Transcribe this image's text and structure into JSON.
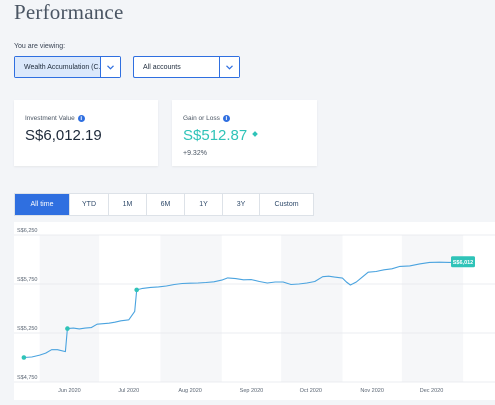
{
  "page": {
    "title": "Performance"
  },
  "viewing": {
    "label": "You are viewing:",
    "portfolio": "Wealth Accumulation (C...",
    "accounts": "All accounts"
  },
  "cards": {
    "investment": {
      "label": "Investment Value",
      "value": "S$6,012.19"
    },
    "gain": {
      "label": "Gain or Loss",
      "value": "S$512.87",
      "pct": "+9.32%"
    }
  },
  "tabs": [
    {
      "label": "All time",
      "active": true
    },
    {
      "label": "YTD"
    },
    {
      "label": "1M"
    },
    {
      "label": "6M"
    },
    {
      "label": "1Y"
    },
    {
      "label": "3Y"
    },
    {
      "label": "Custom"
    }
  ],
  "colors": {
    "accent": "#2f6fe0",
    "line": "#4aa3df",
    "marker": "#2fc3b8"
  },
  "chart_data": {
    "type": "line",
    "y_ticks": [
      "S$6,250",
      "S$5,750",
      "S$5,250",
      "S$4,750"
    ],
    "x_ticks": [
      "Jun 2020",
      "Jul 2020",
      "Aug 2020",
      "Sep 2020",
      "Oct 2020",
      "Nov 2020",
      "Dec 2020"
    ],
    "ylim": [
      4750,
      6250
    ],
    "end_label": "S$6,012",
    "markers": [
      {
        "date": "2020-05-24",
        "value": 5000
      },
      {
        "date": "2020-06-15",
        "value": 5295
      },
      {
        "date": "2020-07-20",
        "value": 5690
      }
    ],
    "series": [
      {
        "values": [
          [
            "2020-05-24",
            5000
          ],
          [
            "2020-05-28",
            5005
          ],
          [
            "2020-06-01",
            5025
          ],
          [
            "2020-06-04",
            5045
          ],
          [
            "2020-06-07",
            5080
          ],
          [
            "2020-06-10",
            5080
          ],
          [
            "2020-06-14",
            5060
          ],
          [
            "2020-06-15",
            5295
          ],
          [
            "2020-06-18",
            5300
          ],
          [
            "2020-06-21",
            5292
          ],
          [
            "2020-06-24",
            5300
          ],
          [
            "2020-06-27",
            5305
          ],
          [
            "2020-06-30",
            5340
          ],
          [
            "2020-07-03",
            5345
          ],
          [
            "2020-07-06",
            5350
          ],
          [
            "2020-07-09",
            5360
          ],
          [
            "2020-07-12",
            5375
          ],
          [
            "2020-07-16",
            5385
          ],
          [
            "2020-07-19",
            5470
          ],
          [
            "2020-07-20",
            5690
          ],
          [
            "2020-07-23",
            5705
          ],
          [
            "2020-07-27",
            5715
          ],
          [
            "2020-07-31",
            5720
          ],
          [
            "2020-08-04",
            5730
          ],
          [
            "2020-08-08",
            5745
          ],
          [
            "2020-08-12",
            5755
          ],
          [
            "2020-08-16",
            5758
          ],
          [
            "2020-08-20",
            5760
          ],
          [
            "2020-08-24",
            5765
          ],
          [
            "2020-08-28",
            5772
          ],
          [
            "2020-09-01",
            5790
          ],
          [
            "2020-09-04",
            5812
          ],
          [
            "2020-09-08",
            5805
          ],
          [
            "2020-09-12",
            5793
          ],
          [
            "2020-09-16",
            5795
          ],
          [
            "2020-09-20",
            5775
          ],
          [
            "2020-09-24",
            5760
          ],
          [
            "2020-09-28",
            5770
          ],
          [
            "2020-10-02",
            5770
          ],
          [
            "2020-10-06",
            5745
          ],
          [
            "2020-10-10",
            5750
          ],
          [
            "2020-10-14",
            5760
          ],
          [
            "2020-10-18",
            5775
          ],
          [
            "2020-10-22",
            5825
          ],
          [
            "2020-10-25",
            5830
          ],
          [
            "2020-10-28",
            5820
          ],
          [
            "2020-11-01",
            5810
          ],
          [
            "2020-11-03",
            5770
          ],
          [
            "2020-11-05",
            5740
          ],
          [
            "2020-11-08",
            5770
          ],
          [
            "2020-11-11",
            5820
          ],
          [
            "2020-11-14",
            5870
          ],
          [
            "2020-11-18",
            5878
          ],
          [
            "2020-11-22",
            5895
          ],
          [
            "2020-11-26",
            5905
          ],
          [
            "2020-11-30",
            5930
          ],
          [
            "2020-12-05",
            5935
          ],
          [
            "2020-12-10",
            5955
          ],
          [
            "2020-12-15",
            5970
          ],
          [
            "2020-12-20",
            5972
          ],
          [
            "2020-12-25",
            5970
          ],
          [
            "2020-12-31",
            5972
          ]
        ]
      }
    ]
  }
}
